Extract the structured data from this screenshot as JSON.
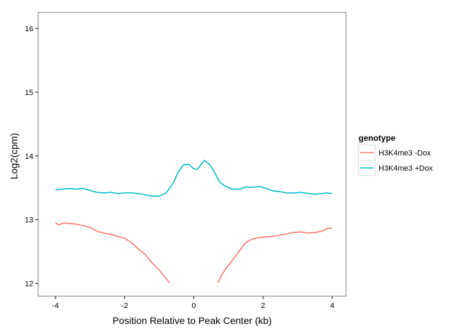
{
  "chart_data": {
    "type": "line",
    "xlabel": "Position Relative to Peak Center (kb)",
    "ylabel": "Log2(cpm)",
    "xlim": [
      -4.5,
      4.4
    ],
    "ylim": [
      11.8,
      16.25
    ],
    "x_ticks": [
      {
        "value": -4,
        "label": "-4"
      },
      {
        "value": -2,
        "label": "-2"
      },
      {
        "value": 0,
        "label": "0"
      },
      {
        "value": 2,
        "label": "2"
      },
      {
        "value": 4,
        "label": "4"
      }
    ],
    "y_ticks": [
      {
        "value": 12,
        "label": "12"
      },
      {
        "value": 13,
        "label": "13"
      },
      {
        "value": 14,
        "label": "14"
      },
      {
        "value": 15,
        "label": "15"
      },
      {
        "value": 16,
        "label": "16"
      }
    ],
    "grid": false,
    "legend": {
      "title": "genotype",
      "position": "right"
    },
    "series": [
      {
        "name": "H3K4me3 -Dox",
        "color": "#F8766D",
        "segments": [
          [
            [
              -4.0,
              12.95
            ],
            [
              -3.9,
              12.92
            ],
            [
              -3.75,
              12.95
            ],
            [
              -3.6,
              12.94
            ],
            [
              -3.4,
              12.93
            ],
            [
              -3.2,
              12.91
            ],
            [
              -3.0,
              12.88
            ],
            [
              -2.8,
              12.82
            ],
            [
              -2.6,
              12.79
            ],
            [
              -2.4,
              12.77
            ],
            [
              -2.2,
              12.74
            ],
            [
              -2.0,
              12.71
            ],
            [
              -1.8,
              12.64
            ],
            [
              -1.6,
              12.54
            ],
            [
              -1.4,
              12.45
            ],
            [
              -1.2,
              12.32
            ],
            [
              -1.0,
              12.21
            ],
            [
              -0.85,
              12.11
            ],
            [
              -0.7,
              12.01
            ]
          ],
          [
            [
              0.7,
              12.01
            ],
            [
              0.8,
              12.13
            ],
            [
              0.95,
              12.25
            ],
            [
              1.1,
              12.35
            ],
            [
              1.3,
              12.5
            ],
            [
              1.5,
              12.64
            ],
            [
              1.7,
              12.7
            ],
            [
              1.9,
              12.72
            ],
            [
              2.1,
              12.73
            ],
            [
              2.3,
              12.74
            ],
            [
              2.5,
              12.76
            ],
            [
              2.7,
              12.78
            ],
            [
              2.9,
              12.8
            ],
            [
              3.1,
              12.81
            ],
            [
              3.3,
              12.79
            ],
            [
              3.5,
              12.8
            ],
            [
              3.7,
              12.82
            ],
            [
              3.85,
              12.86
            ],
            [
              4.0,
              12.87
            ]
          ]
        ]
      },
      {
        "name": "H3K4me3 +Dox",
        "color": "#00BFC4",
        "segments": [
          [
            [
              -4.0,
              13.47
            ],
            [
              -3.8,
              13.48
            ],
            [
              -3.6,
              13.49
            ],
            [
              -3.4,
              13.48
            ],
            [
              -3.2,
              13.49
            ],
            [
              -3.0,
              13.46
            ],
            [
              -2.8,
              13.43
            ],
            [
              -2.6,
              13.42
            ],
            [
              -2.4,
              13.43
            ],
            [
              -2.2,
              13.41
            ],
            [
              -2.0,
              13.42
            ],
            [
              -1.8,
              13.42
            ],
            [
              -1.6,
              13.41
            ],
            [
              -1.4,
              13.39
            ],
            [
              -1.2,
              13.37
            ],
            [
              -1.0,
              13.37
            ],
            [
              -0.8,
              13.42
            ],
            [
              -0.6,
              13.57
            ],
            [
              -0.45,
              13.75
            ],
            [
              -0.3,
              13.86
            ],
            [
              -0.15,
              13.87
            ],
            [
              0.0,
              13.8
            ],
            [
              0.1,
              13.79
            ],
            [
              0.2,
              13.86
            ],
            [
              0.3,
              13.93
            ],
            [
              0.45,
              13.87
            ],
            [
              0.6,
              13.74
            ],
            [
              0.75,
              13.59
            ],
            [
              0.9,
              13.53
            ],
            [
              1.1,
              13.48
            ],
            [
              1.3,
              13.48
            ],
            [
              1.5,
              13.51
            ],
            [
              1.7,
              13.51
            ],
            [
              1.9,
              13.52
            ],
            [
              2.1,
              13.49
            ],
            [
              2.3,
              13.45
            ],
            [
              2.5,
              13.44
            ],
            [
              2.7,
              13.42
            ],
            [
              2.9,
              13.42
            ],
            [
              3.1,
              13.43
            ],
            [
              3.3,
              13.41
            ],
            [
              3.5,
              13.4
            ],
            [
              3.7,
              13.41
            ],
            [
              3.85,
              13.42
            ],
            [
              4.0,
              13.41
            ]
          ]
        ]
      }
    ]
  }
}
